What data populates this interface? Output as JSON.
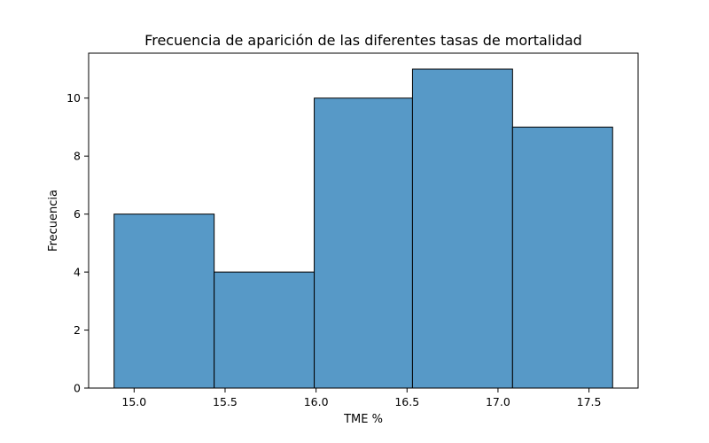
{
  "chart_data": {
    "type": "bar",
    "title": "Frecuencia de aparición de las diferentes tasas de mortalidad",
    "xlabel": "TME %",
    "ylabel": "Frecuencia",
    "bins": [
      {
        "start": 14.89,
        "end": 15.44,
        "count": 6
      },
      {
        "start": 15.44,
        "end": 15.99,
        "count": 4
      },
      {
        "start": 15.99,
        "end": 16.53,
        "count": 10
      },
      {
        "start": 16.53,
        "end": 17.08,
        "count": 11
      },
      {
        "start": 17.08,
        "end": 17.63,
        "count": 9
      }
    ],
    "xlim": [
      14.75,
      17.77
    ],
    "ylim": [
      0,
      11.55
    ],
    "xticks": [
      15.0,
      15.5,
      16.0,
      16.5,
      17.0,
      17.5
    ],
    "xtick_labels": [
      "15.0",
      "15.5",
      "16.0",
      "16.5",
      "17.0",
      "17.5"
    ],
    "yticks": [
      0,
      2,
      4,
      6,
      8,
      10
    ],
    "ytick_labels": [
      "0",
      "2",
      "4",
      "6",
      "8",
      "10"
    ],
    "grid": false,
    "bar_color": "#5799c7",
    "edge_color": "#000000"
  }
}
